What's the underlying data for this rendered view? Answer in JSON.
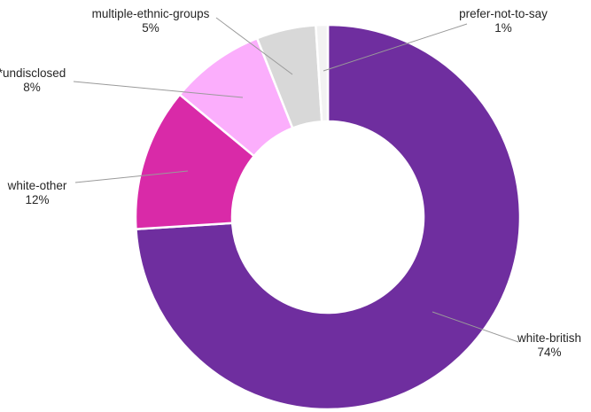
{
  "chart_data": {
    "type": "pie",
    "donut": true,
    "title": "",
    "slices": [
      {
        "label": "white-british",
        "value": 74,
        "value_label": "74%",
        "color": "#6f2e9f"
      },
      {
        "label": "white-other",
        "value": 12,
        "value_label": "12%",
        "color": "#d92aa8"
      },
      {
        "label": "*undisclosed",
        "value": 8,
        "value_label": "8%",
        "color": "#fbaefc"
      },
      {
        "label": "multiple-ethnic-groups",
        "value": 5,
        "value_label": "5%",
        "color": "#d8d8d8"
      },
      {
        "label": "prefer-not-to-say",
        "value": 1,
        "value_label": "1%",
        "color": "#f2f2f2"
      }
    ],
    "start": "12 o'clock",
    "direction": "clockwise",
    "legend": "none"
  }
}
